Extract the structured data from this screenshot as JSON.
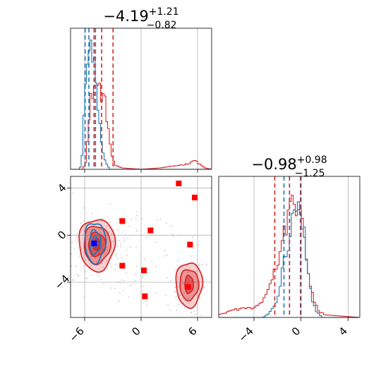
{
  "chart_data": {
    "type": "corner",
    "series": [
      {
        "name": "",
        "color": "#1f77b4"
      },
      {
        "name": "",
        "color": "#d62728"
      }
    ],
    "panels": [
      {
        "id": "hist-param1",
        "type": "histogram",
        "title": {
          "main": "−4.19",
          "sup": "+1.21",
          "sub": "−0.82"
        },
        "xlim": [
          -7.5,
          7.5
        ],
        "grid": true,
        "quantile_lines": {
          "#1f77b4": [
            -5.95,
            -5.55,
            -4.85
          ],
          "#d62728": [
            -5.0,
            -4.19,
            -2.98
          ]
        },
        "red_curve_knots": [
          [
            -7.5,
            0
          ],
          [
            -6.2,
            0
          ],
          [
            -5.9,
            0.06
          ],
          [
            -5.6,
            0.3
          ],
          [
            -5.3,
            0.55
          ],
          [
            -5.0,
            0.62
          ],
          [
            -4.7,
            0.62
          ],
          [
            -4.4,
            0.6
          ],
          [
            -4.1,
            0.55
          ],
          [
            -3.8,
            0.48
          ],
          [
            -3.4,
            0.25
          ],
          [
            -3.1,
            0.1
          ],
          [
            -2.8,
            0.03
          ],
          [
            -2.0,
            0.01
          ],
          [
            0,
            0.0
          ],
          [
            2,
            0.01
          ],
          [
            4,
            0.03
          ],
          [
            5.0,
            0.04
          ],
          [
            5.6,
            0.07
          ],
          [
            6.2,
            0.04
          ],
          [
            6.8,
            0.01
          ],
          [
            7.5,
            0
          ]
        ],
        "blue_curve_knots": [
          [
            -7.5,
            0
          ],
          [
            -6.5,
            0
          ],
          [
            -6.2,
            0.15
          ],
          [
            -6.0,
            0.55
          ],
          [
            -5.8,
            0.72
          ],
          [
            -5.6,
            0.8
          ],
          [
            -5.4,
            0.95
          ],
          [
            -5.2,
            0.9
          ],
          [
            -5.0,
            0.78
          ],
          [
            -4.8,
            0.62
          ],
          [
            -4.6,
            0.45
          ],
          [
            -4.4,
            0.32
          ],
          [
            -4.2,
            0.2
          ],
          [
            -4.0,
            0.1
          ],
          [
            -3.7,
            0.04
          ],
          [
            -3.3,
            0.0
          ],
          [
            7.5,
            0
          ]
        ]
      },
      {
        "id": "scatter-param1-param2",
        "type": "contour",
        "xlim": [
          -7.5,
          7.5
        ],
        "ylim": [
          -7.0,
          5.0
        ],
        "xticks": [
          -6,
          0,
          6
        ],
        "yticks": [
          -4,
          0,
          4
        ],
        "grid": true,
        "red_markers": [
          [
            -2.0,
            1.2
          ],
          [
            1.0,
            0.4
          ],
          [
            4.0,
            4.4
          ],
          [
            5.7,
            3.2
          ],
          [
            -2.0,
            -2.6
          ],
          [
            0.3,
            -3.0
          ],
          [
            5.2,
            -0.8
          ],
          [
            0.4,
            -5.2
          ],
          [
            5.0,
            -4.4
          ]
        ],
        "blue_marker": [
          -5.0,
          -0.7
        ],
        "red_clusters": [
          {
            "center": [
              -4.7,
              -0.8
            ],
            "levels": [
              [
                1.9,
                2.2
              ],
              [
                1.4,
                1.6
              ],
              [
                0.9,
                1.0
              ],
              [
                0.4,
                0.5
              ]
            ]
          },
          {
            "center": [
              5.1,
              -4.2
            ],
            "levels": [
              [
                1.4,
                1.9
              ],
              [
                1.0,
                1.3
              ],
              [
                0.45,
                0.75
              ]
            ]
          }
        ],
        "blue_cluster": {
          "center": [
            -4.9,
            -0.6
          ],
          "levels": [
            [
              1.1,
              1.7
            ],
            [
              0.6,
              1.0
            ],
            [
              0.3,
              0.5
            ]
          ]
        }
      },
      {
        "id": "hist-param2",
        "type": "histogram",
        "title": {
          "main": "−0.98",
          "sup": "+0.98",
          "sub": "−1.25"
        },
        "xlim": [
          -7.0,
          5.0
        ],
        "xticks": [
          -4,
          0,
          4
        ],
        "grid": true,
        "quantile_lines": {
          "#1f77b4": [
            -1.45,
            -0.98,
            -0.05
          ],
          "#d62728": [
            -2.23,
            -0.98,
            0.0
          ]
        },
        "red_curve_knots": [
          [
            -7,
            0.02
          ],
          [
            -6,
            0.05
          ],
          [
            -5,
            0.07
          ],
          [
            -4,
            0.07
          ],
          [
            -3.5,
            0.1
          ],
          [
            -3,
            0.16
          ],
          [
            -2.5,
            0.28
          ],
          [
            -2.0,
            0.42
          ],
          [
            -1.5,
            0.58
          ],
          [
            -1.0,
            0.75
          ],
          [
            -0.6,
            0.88
          ],
          [
            -0.3,
            0.9
          ],
          [
            0.0,
            0.8
          ],
          [
            0.3,
            0.58
          ],
          [
            0.7,
            0.32
          ],
          [
            1.0,
            0.15
          ],
          [
            1.5,
            0.05
          ],
          [
            2.0,
            0.02
          ],
          [
            5.0,
            0.0
          ]
        ],
        "blue_curve_knots": [
          [
            -7,
            0
          ],
          [
            -3.2,
            0
          ],
          [
            -2.5,
            0.05
          ],
          [
            -2.0,
            0.15
          ],
          [
            -1.5,
            0.38
          ],
          [
            -1.0,
            0.62
          ],
          [
            -0.6,
            0.82
          ],
          [
            -0.3,
            0.95
          ],
          [
            0.0,
            0.85
          ],
          [
            0.3,
            0.6
          ],
          [
            0.6,
            0.35
          ],
          [
            0.9,
            0.15
          ],
          [
            1.3,
            0.05
          ],
          [
            1.8,
            0.0
          ],
          [
            5.0,
            0.0
          ]
        ]
      }
    ]
  }
}
